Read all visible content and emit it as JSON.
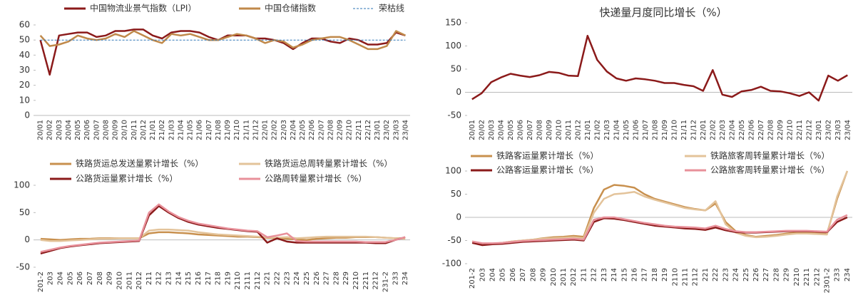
{
  "chart_data": [
    {
      "type": "line",
      "categories": [
        "20/01",
        "20/02",
        "20/03",
        "20/04",
        "20/05",
        "20/06",
        "20/07",
        "20/08",
        "20/09",
        "20/10",
        "20/11",
        "20/12",
        "21/01",
        "21/02",
        "21/03",
        "21/04",
        "21/05",
        "21/06",
        "21/07",
        "21/08",
        "21/09",
        "21/10",
        "21/11",
        "21/12",
        "22/01",
        "22/02",
        "22/03",
        "22/04",
        "22/05",
        "22/06",
        "22/07",
        "22/08",
        "22/09",
        "22/10",
        "22/11",
        "22/12",
        "23/01",
        "23/02",
        "23/03",
        "23/04"
      ],
      "series": [
        {
          "name": "中国物流业景气指数（LPI）",
          "color": "#8b1a1a",
          "values": [
            50,
            27,
            53,
            54,
            55,
            55,
            52,
            53,
            56,
            56,
            57,
            57,
            53,
            51,
            55,
            56,
            56,
            55,
            52,
            50,
            53,
            53,
            53,
            51,
            51,
            50,
            48,
            44,
            48,
            51,
            51,
            49,
            48,
            51,
            50,
            47,
            47,
            48,
            55,
            53
          ]
        },
        {
          "name": "中国仓储指数",
          "color": "#c0894a",
          "values": [
            53,
            46,
            47,
            49,
            53,
            51,
            50,
            51,
            54,
            52,
            56,
            53,
            50,
            48,
            54,
            53,
            54,
            52,
            50,
            50,
            52,
            54,
            53,
            51,
            48,
            50,
            49,
            45,
            47,
            50,
            51,
            52,
            52,
            50,
            47,
            44,
            44,
            46,
            56,
            53
          ]
        },
        {
          "name": "荣枯线",
          "color": "#2e75b6",
          "dashed": true,
          "values": [
            50,
            50,
            50,
            50,
            50,
            50,
            50,
            50,
            50,
            50,
            50,
            50,
            50,
            50,
            50,
            50,
            50,
            50,
            50,
            50,
            50,
            50,
            50,
            50,
            50,
            50,
            50,
            50,
            50,
            50,
            50,
            50,
            50,
            50,
            50,
            50,
            50,
            50,
            50,
            50
          ]
        }
      ],
      "ylim": [
        0,
        60
      ],
      "yticks": [
        0,
        10,
        20,
        30,
        40,
        50,
        60
      ]
    },
    {
      "type": "line",
      "title": "快递量月度同比增长（%）",
      "categories": [
        "20/01",
        "20/02",
        "20/03",
        "20/04",
        "20/05",
        "20/06",
        "20/07",
        "20/08",
        "20/09",
        "20/10",
        "20/11",
        "20/12",
        "21/01",
        "21/02",
        "21/03",
        "21/04",
        "21/05",
        "21/06",
        "21/07",
        "21/08",
        "21/09",
        "21/10",
        "21/11",
        "21/12",
        "22/01",
        "22/02",
        "22/03",
        "22/04",
        "22/05",
        "22/06",
        "22/07",
        "22/08",
        "22/09",
        "22/10",
        "22/11",
        "22/12",
        "23/01",
        "23/02",
        "23/03",
        "23/04"
      ],
      "series": [
        {
          "name": null,
          "color": "#8b1a1a",
          "values": [
            -15,
            -2,
            22,
            32,
            40,
            36,
            33,
            37,
            44,
            42,
            36,
            35,
            122,
            70,
            45,
            30,
            25,
            30,
            28,
            25,
            20,
            20,
            16,
            13,
            3,
            48,
            -5,
            -10,
            2,
            5,
            12,
            3,
            2,
            -2,
            -8,
            0,
            -18,
            36,
            25,
            37
          ]
        }
      ],
      "ylim": [
        -50,
        150
      ],
      "yticks": [
        -50,
        0,
        50,
        100,
        150
      ]
    },
    {
      "type": "line",
      "categories": [
        "201-2",
        "203",
        "204",
        "205",
        "206",
        "207",
        "208",
        "209",
        "2010",
        "2011",
        "2012",
        "211",
        "212",
        "213",
        "214",
        "215",
        "216",
        "217",
        "218",
        "219",
        "2110",
        "2111",
        "2112",
        "221",
        "222",
        "223",
        "224",
        "225",
        "226",
        "227",
        "228",
        "229",
        "2210",
        "2211",
        "2212",
        "231-2",
        "233",
        "234"
      ],
      "series": [
        {
          "name": "铁路货运总发送量累计增长（%）",
          "color": "#c8904e",
          "values": [
            2,
            1,
            0,
            1,
            2,
            2,
            3,
            3,
            3,
            3,
            3,
            12,
            14,
            14,
            13,
            12,
            10,
            9,
            8,
            7,
            6,
            6,
            5,
            4,
            3,
            2,
            1,
            0,
            2,
            3,
            4,
            4,
            5,
            5,
            5,
            4,
            3,
            3
          ]
        },
        {
          "name": "铁路货运总周转量累计增长（%）",
          "color": "#e3c39a",
          "values": [
            0,
            -2,
            -2,
            -1,
            0,
            1,
            2,
            2,
            3,
            3,
            3,
            17,
            19,
            19,
            18,
            17,
            14,
            12,
            10,
            9,
            8,
            7,
            6,
            5,
            4,
            5,
            3,
            4,
            5,
            6,
            6,
            6,
            6,
            6,
            5,
            4,
            3,
            2
          ]
        },
        {
          "name": "公路货运量累计增长（%）",
          "color": "#8b1a1a",
          "values": [
            -25,
            -20,
            -15,
            -12,
            -10,
            -8,
            -6,
            -5,
            -4,
            -3,
            -2,
            45,
            62,
            50,
            40,
            33,
            28,
            25,
            22,
            20,
            18,
            16,
            15,
            -5,
            3,
            -3,
            -5,
            -5,
            -5,
            -5,
            -5,
            -5,
            -5,
            -5,
            -6,
            -6,
            0,
            5
          ]
        },
        {
          "name": "公路周转量累计增长（%）",
          "color": "#e8909a",
          "values": [
            -22,
            -18,
            -14,
            -11,
            -9,
            -7,
            -5,
            -4,
            -3,
            -2,
            -1,
            50,
            65,
            52,
            42,
            35,
            30,
            27,
            24,
            21,
            19,
            17,
            16,
            5,
            8,
            12,
            -2,
            -3,
            -3,
            -3,
            -3,
            -3,
            -3,
            -4,
            -4,
            -4,
            0,
            5
          ]
        }
      ],
      "ylim": [
        -50,
        100
      ],
      "yticks": [
        -50,
        0,
        50,
        100
      ]
    },
    {
      "type": "line",
      "categories": [
        "201-2",
        "203",
        "204",
        "205",
        "206",
        "207",
        "208",
        "209",
        "2010",
        "2011",
        "2012",
        "211",
        "212",
        "213",
        "214",
        "215",
        "216",
        "217",
        "218",
        "219",
        "2110",
        "2111",
        "2112",
        "221",
        "222",
        "223",
        "224",
        "225",
        "226",
        "227",
        "228",
        "229",
        "2210",
        "2211",
        "2212",
        "2301-2",
        "233",
        "234"
      ],
      "series": [
        {
          "name": "铁路客运量累计增长（%）",
          "color": "#c8904e",
          "values": [
            -52,
            -58,
            -57,
            -55,
            -52,
            -50,
            -48,
            -45,
            -43,
            -42,
            -40,
            -42,
            20,
            60,
            70,
            68,
            64,
            50,
            40,
            34,
            28,
            22,
            18,
            15,
            30,
            -10,
            -30,
            -38,
            -42,
            -40,
            -38,
            -35,
            -33,
            -33,
            -34,
            -35,
            40,
            100
          ]
        },
        {
          "name": "铁路旅客周转量累计增长（%）",
          "color": "#e3c39a",
          "values": [
            -55,
            -58,
            -57,
            -55,
            -52,
            -50,
            -48,
            -46,
            -45,
            -44,
            -43,
            -45,
            10,
            40,
            50,
            52,
            55,
            45,
            38,
            32,
            26,
            20,
            17,
            15,
            35,
            -15,
            -33,
            -40,
            -43,
            -42,
            -40,
            -37,
            -35,
            -35,
            -36,
            -37,
            45,
            100
          ]
        },
        {
          "name": "公路客运量累计增长（%）",
          "color": "#8b1a1a",
          "values": [
            -55,
            -60,
            -58,
            -57,
            -55,
            -53,
            -52,
            -51,
            -50,
            -49,
            -48,
            -50,
            -10,
            -2,
            -3,
            -6,
            -10,
            -14,
            -18,
            -20,
            -22,
            -24,
            -25,
            -27,
            -22,
            -28,
            -32,
            -33,
            -33,
            -32,
            -31,
            -30,
            -30,
            -30,
            -31,
            -32,
            -10,
            0
          ]
        },
        {
          "name": "公路旅客周转量累计增长（%）",
          "color": "#e8909a",
          "values": [
            -52,
            -56,
            -56,
            -55,
            -53,
            -51,
            -50,
            -49,
            -48,
            -47,
            -46,
            -48,
            -5,
            0,
            0,
            -4,
            -8,
            -12,
            -15,
            -18,
            -20,
            -21,
            -22,
            -24,
            -18,
            -25,
            -30,
            -32,
            -32,
            -31,
            -30,
            -29,
            -29,
            -29,
            -30,
            -31,
            -5,
            5
          ]
        }
      ],
      "ylim": [
        -100,
        100
      ],
      "yticks": [
        -100,
        -50,
        0,
        50,
        100
      ]
    }
  ]
}
